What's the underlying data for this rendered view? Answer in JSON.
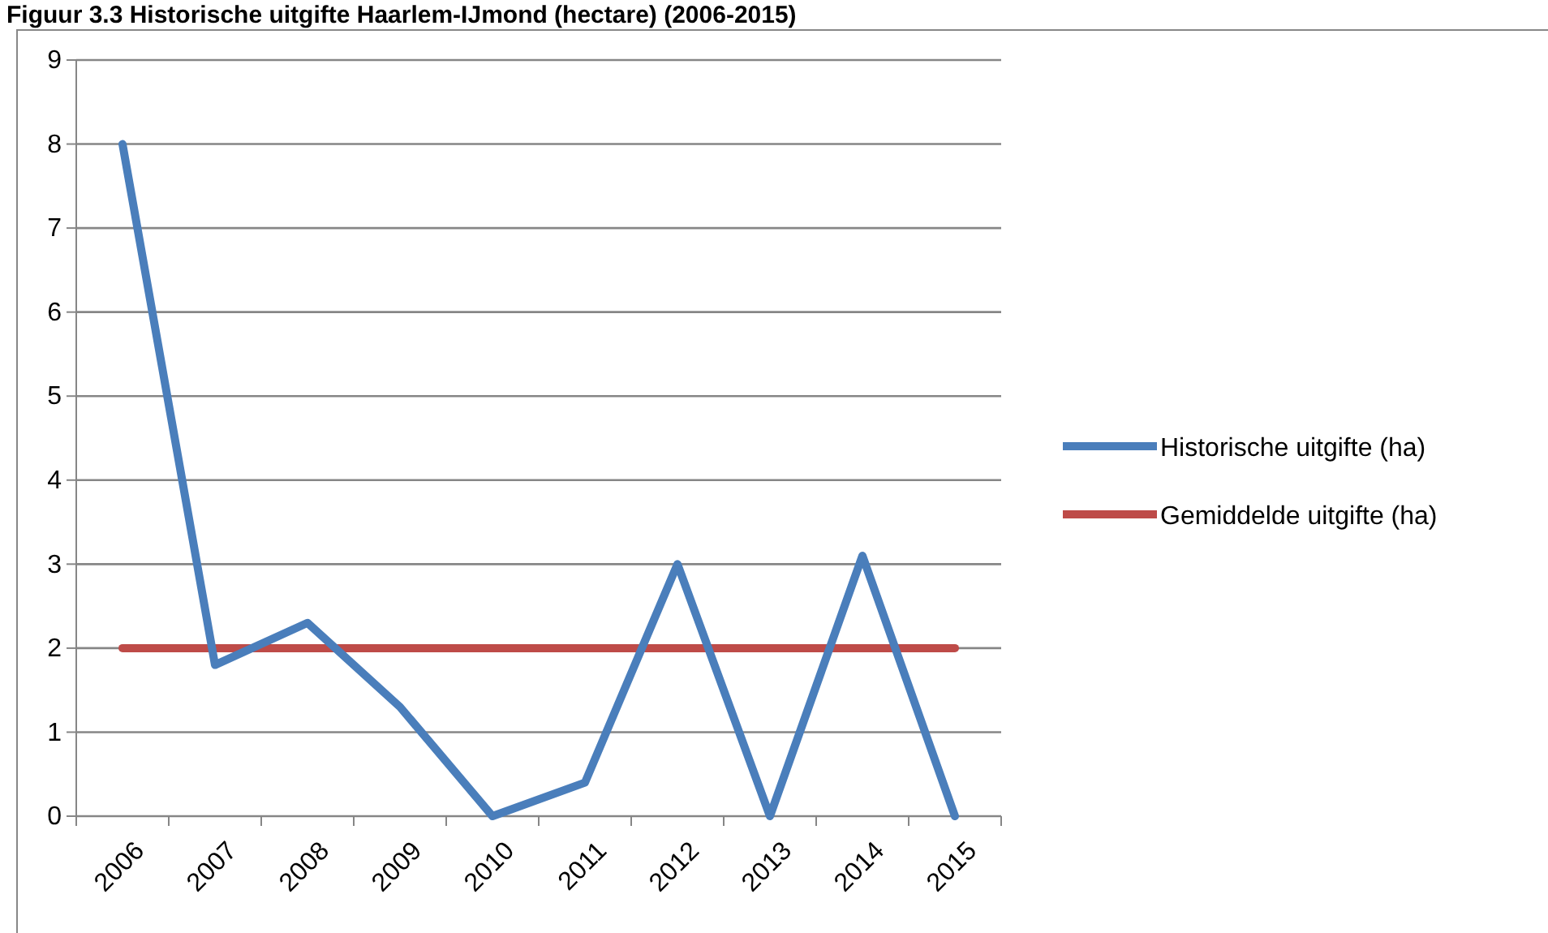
{
  "chart_data": {
    "type": "line",
    "title": "Figuur 3.3 Historische uitgifte Haarlem-IJmond (hectare) (2006-2015)",
    "categories": [
      "2006",
      "2007",
      "2008",
      "2009",
      "2010",
      "2011",
      "2012",
      "2013",
      "2014",
      "2015"
    ],
    "series": [
      {
        "name": "Historische uitgifte (ha)",
        "color": "#4a7ebb",
        "values": [
          8,
          1.8,
          2.3,
          1.3,
          0,
          0.4,
          3,
          0,
          3.1,
          0
        ]
      },
      {
        "name": "Gemiddelde uitgifte (ha)",
        "color": "#be4b48",
        "values": [
          2,
          2,
          2,
          2,
          2,
          2,
          2,
          2,
          2,
          2
        ]
      }
    ],
    "ylim": [
      0,
      9
    ],
    "yticks": [
      0,
      1,
      2,
      3,
      4,
      5,
      6,
      7,
      8,
      9
    ],
    "grid": "y",
    "legend": "right",
    "marker": "none",
    "line_style": "solid"
  }
}
